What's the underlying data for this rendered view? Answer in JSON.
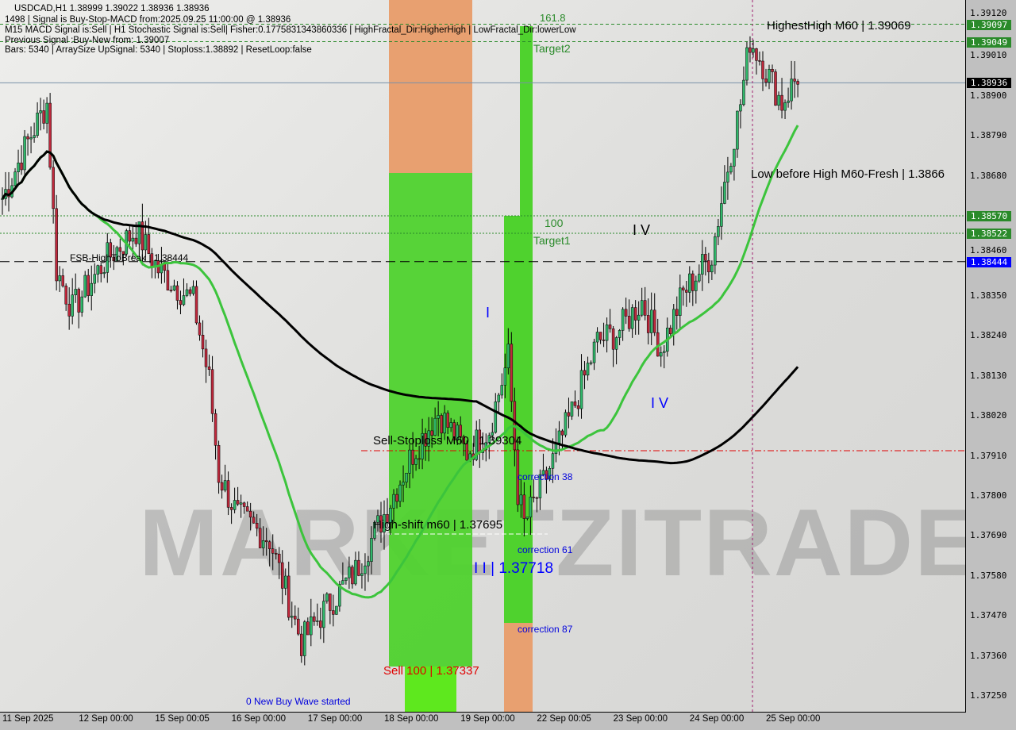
{
  "header": {
    "line1": "USDCAD,H1  1.38999 1.39022 1.38936 1.38936",
    "line2": "1498 | Signal is Buy-Stop-MACD from:2025.09.25 11:00:00 @ 1.38936",
    "line3": "M15 MACD Signal is:Sell | H1 Stochastic Signal is:Sell| Fisher:0.1775831343860336 | HighFractal_Dir:HigherHigh | LowFractal_Dir:lowerLow",
    "line4": "Previous Signal :Buy-New from: 1.39007",
    "line5": "Bars: 5340 | ArraySize UpSignal: 5340 | Stoploss:1.38892 | ResetLoop:false"
  },
  "watermark": "MARKETZITRADE",
  "annotations": {
    "highest_high": "HighestHigh   M60 | 1.39069",
    "low_before_high": "Low before High   M60-Fresh | 1.3866",
    "fsb": "FSB-HighToBreak | 1.38444",
    "sell_stoploss": "Sell-Stoploss M60 | 1.39304",
    "high_shift": "High-shift m60 | 1.37695",
    "sell100": "Sell 100 | 1.37337",
    "new_buy_wave": "0 New Buy Wave started",
    "wave2": "I I | 1.37718",
    "wave1": "I",
    "wave4": "I V",
    "wave5": "I V",
    "target2": "Target2",
    "target1": "Target1",
    "fib100": "100",
    "fib161": "161.8",
    "corr38": "correction 38",
    "corr61": "correction 61",
    "corr87": "correction 87"
  },
  "chart_data": {
    "type": "candlestick",
    "symbol": "USDCAD",
    "timeframe": "H1",
    "ylim": [
      1.372,
      1.3916
    ],
    "y_ticks": [
      "1.39120",
      "1.39010",
      "1.38900",
      "1.38790",
      "1.38680",
      "1.38460",
      "1.38350",
      "1.38240",
      "1.38130",
      "1.38020",
      "1.37910",
      "1.37800",
      "1.37690",
      "1.37580",
      "1.37470",
      "1.37360",
      "1.37250"
    ],
    "x_ticks": [
      "11 Sep 2025",
      "12 Sep 00:00",
      "15 Sep 00:05",
      "16 Sep 00:00",
      "17 Sep 00:00",
      "18 Sep 00:00",
      "19 Sep 00:00",
      "22 Sep 00:05",
      "23 Sep 00:00",
      "24 Sep 00:00",
      "25 Sep 00:00"
    ],
    "price_path": [
      [
        "11 00:00",
        1.38618
      ],
      [
        "11 09:00",
        1.38793
      ],
      [
        "11 14:00",
        1.3888
      ],
      [
        "11 17:00",
        1.38422
      ],
      [
        "11 22:00",
        1.38313
      ],
      [
        "12 08:00",
        1.38444
      ],
      [
        "12 18:00",
        1.38531
      ],
      [
        "15 01:00",
        1.38422
      ],
      [
        "15 12:00",
        1.38335
      ],
      [
        "15 17:00",
        1.38117
      ],
      [
        "15 20:00",
        1.37858
      ],
      [
        "16 02:00",
        1.37745
      ],
      [
        "16 12:00",
        1.3768
      ],
      [
        "16 22:00",
        1.37397
      ],
      [
        "17 05:00",
        1.37484
      ],
      [
        "17 15:00",
        1.37593
      ],
      [
        "18 01:00",
        1.37767
      ],
      [
        "18 09:00",
        1.37919
      ],
      [
        "18 17:00",
        1.38029
      ],
      [
        "19 02:00",
        1.37919
      ],
      [
        "19 09:00",
        1.37984
      ],
      [
        "19 15:00",
        1.38181
      ],
      [
        "19 18:00",
        1.3781
      ],
      [
        "19 20:00",
        1.37723
      ],
      [
        "22 03:00",
        1.37854
      ],
      [
        "22 11:00",
        1.38029
      ],
      [
        "22 19:00",
        1.38225
      ],
      [
        "23 01:00",
        1.38247
      ],
      [
        "23 09:00",
        1.38335
      ],
      [
        "23 15:00",
        1.38204
      ],
      [
        "23 22:00",
        1.38357
      ],
      [
        "24 07:00",
        1.38465
      ],
      [
        "24 11:00",
        1.38662
      ],
      [
        "24 16:00",
        1.3888
      ],
      [
        "24 19:00",
        1.39055
      ],
      [
        "24 23:00",
        1.38989
      ],
      [
        "25 05:00",
        1.3888
      ],
      [
        "25 10:00",
        1.38956
      ]
    ],
    "levels": [
      {
        "price": 1.39097,
        "label": "1.39097",
        "color": "#2a8a2a",
        "style": "dashed"
      },
      {
        "price": 1.39049,
        "label": "1.39049",
        "color": "#2a8a2a",
        "style": "dashed"
      },
      {
        "price": 1.38936,
        "label": "1.38936",
        "color": "#000000",
        "style": "solid"
      },
      {
        "price": 1.3857,
        "label": "1.38570",
        "color": "#2a8a2a",
        "style": "dotted"
      },
      {
        "price": 1.38522,
        "label": "1.38522",
        "color": "#2a8a2a",
        "style": "dotted"
      },
      {
        "price": 1.38444,
        "label": "1.38444",
        "color": "#0000ff",
        "style": "longdash"
      }
    ],
    "moving_averages": [
      {
        "period": 30,
        "color": "#3cc43c"
      },
      {
        "period": 150,
        "color": "#000000"
      }
    ],
    "colors": {
      "bull": "#2fb86a",
      "bear": "#c0283c",
      "zone_green": "#4fd22e",
      "zone_orange": "#e8a070",
      "stop_line": "#e00000"
    }
  }
}
